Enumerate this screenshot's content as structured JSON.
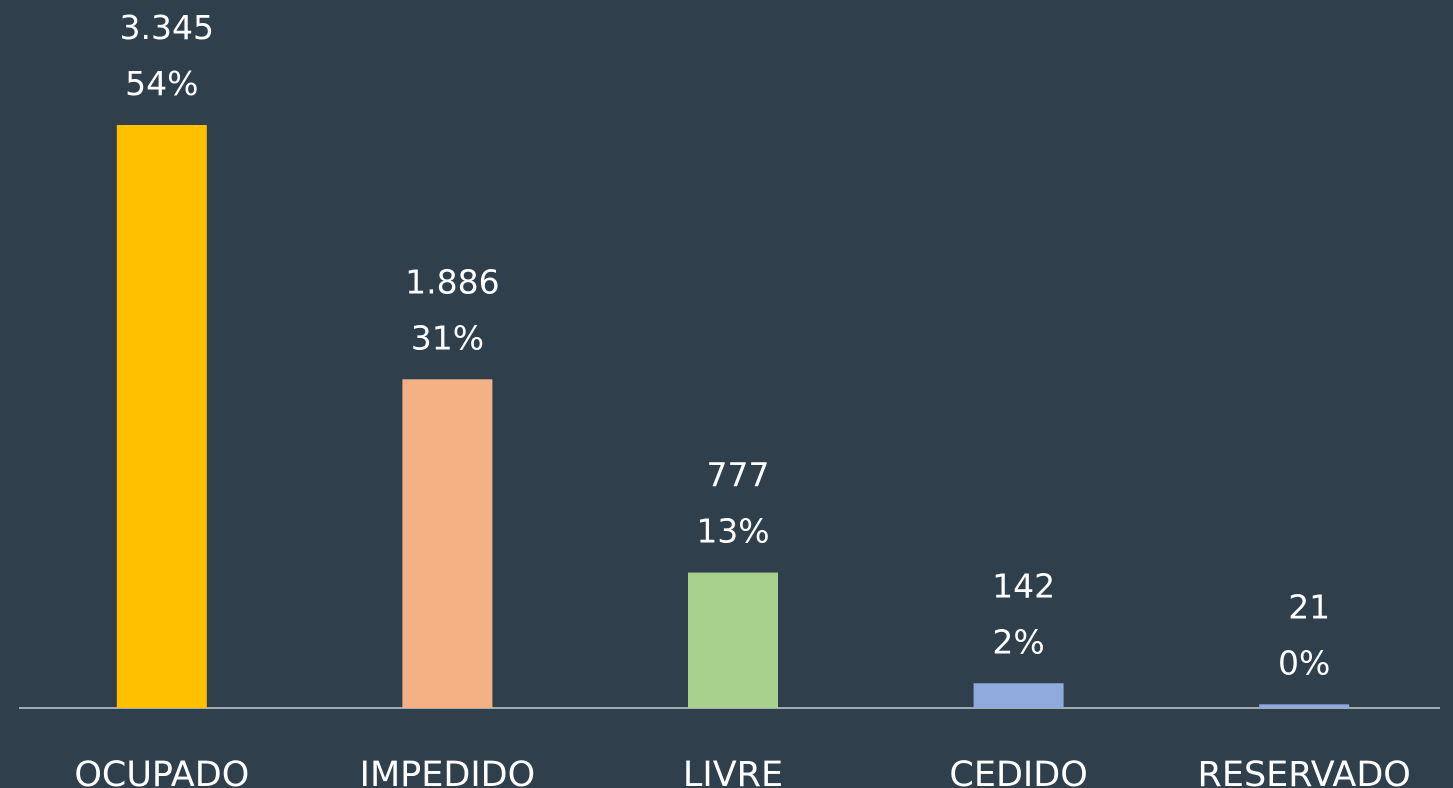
{
  "chart_data": {
    "type": "bar",
    "categories": [
      "OCUPADO",
      "IMPEDIDO",
      "LIVRE",
      "CEDIDO",
      "RESERVADO"
    ],
    "values": [
      3345,
      1886,
      777,
      142,
      21
    ],
    "value_labels": [
      "3.345",
      "1.886",
      "777",
      "142",
      "21"
    ],
    "shares": [
      54,
      31,
      13,
      2,
      0
    ],
    "share_labels": [
      "54%",
      "31%",
      "13%",
      "2%",
      "0%"
    ],
    "colors": [
      "#ffc000",
      "#f4b183",
      "#a9d18e",
      "#8faadc",
      "#8faadc"
    ]
  }
}
